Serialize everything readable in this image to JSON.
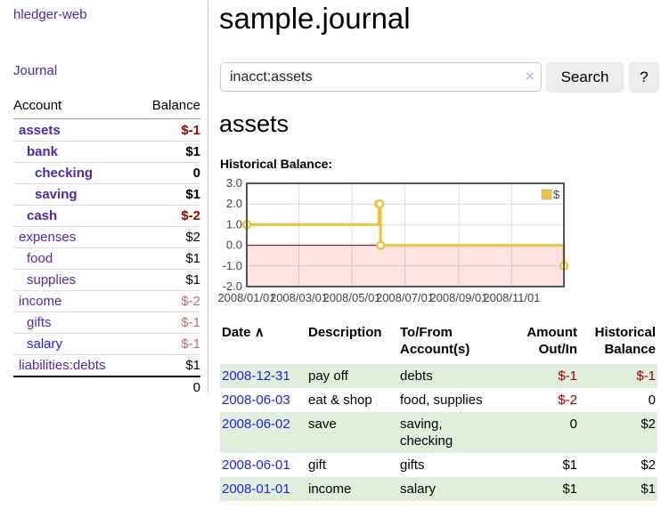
{
  "colors": {
    "link_purple": "#5229a3",
    "link_blue": "#2222dd",
    "negative_strong": "#a40000",
    "negative_muted": "#c06f6f",
    "row_stripe_green": "#e0eedb",
    "series_gold": "#edc240",
    "zero_line_red": "#8b0000",
    "negative_region_red": "#ff0000",
    "plot_border_gray": "#545454"
  },
  "app": {
    "title": "hledger-web"
  },
  "sidebar": {
    "journal_label": "Journal",
    "accounts_table": {
      "headers": {
        "account": "Account",
        "balance": "Balance"
      },
      "rows": [
        {
          "name": "assets",
          "balance": "$-1",
          "depth": 1,
          "bold": true,
          "link": "purple"
        },
        {
          "name": "bank",
          "balance": "$1",
          "depth": 2,
          "bold": true,
          "link": "purple"
        },
        {
          "name": "checking",
          "balance": "0",
          "depth": 3,
          "bold": true,
          "link": "purple"
        },
        {
          "name": "saving",
          "balance": "$1",
          "depth": 3,
          "bold": true,
          "link": "purple"
        },
        {
          "name": "cash",
          "balance": "$-2",
          "depth": 2,
          "bold": true,
          "link": "purple"
        },
        {
          "name": "expenses",
          "balance": "$2",
          "depth": 1,
          "bold": false,
          "link": "purple"
        },
        {
          "name": "food",
          "balance": "$1",
          "depth": 2,
          "bold": false,
          "link": "purple"
        },
        {
          "name": "supplies",
          "balance": "$1",
          "depth": 2,
          "bold": false,
          "link": "purple"
        },
        {
          "name": "income",
          "balance": "$-2",
          "depth": 1,
          "bold": false,
          "link": "purple"
        },
        {
          "name": "gifts",
          "balance": "$-1",
          "depth": 2,
          "bold": false,
          "link": "purple"
        },
        {
          "name": "salary",
          "balance": "$-1",
          "depth": 2,
          "bold": false,
          "link": "blue"
        },
        {
          "name": "liabilities:debts",
          "balance": "$1",
          "depth": 1,
          "bold": false,
          "link": "purple"
        }
      ],
      "total": "0"
    }
  },
  "main": {
    "title": "sample.journal",
    "search": {
      "value": "inacct:assets",
      "clear_icon": "×",
      "button_label": "Search",
      "help_label": "?"
    },
    "account_heading": "assets",
    "chart_label": "Historical Balance:"
  },
  "chart_data": {
    "type": "line",
    "style": "step",
    "title": "Historical Balance:",
    "ylim": [
      -2,
      3
    ],
    "yticks": [
      {
        "value": 3,
        "label": "3.0"
      },
      {
        "value": 2,
        "label": "2.0"
      },
      {
        "value": 1,
        "label": "1.0"
      },
      {
        "value": 0,
        "label": "0.0"
      },
      {
        "value": -1,
        "label": "-1.0"
      },
      {
        "value": -2,
        "label": "-2.0"
      }
    ],
    "xlim_days": [
      0,
      365
    ],
    "xticks": [
      {
        "day": 0,
        "label": "2008/01/01"
      },
      {
        "day": 60,
        "label": "2008/03/01"
      },
      {
        "day": 121,
        "label": "2008/05/01"
      },
      {
        "day": 182,
        "label": "2008/07/01"
      },
      {
        "day": 244,
        "label": "2008/09/01"
      },
      {
        "day": 305,
        "label": "2008/11/01"
      }
    ],
    "legend": {
      "label": "$",
      "position": "top-right"
    },
    "grid": true,
    "series": [
      {
        "name": "$",
        "color": "#edc240",
        "points": [
          {
            "date": "2008/01/01",
            "day": 0,
            "value": 1
          },
          {
            "date": "2008/06/01",
            "day": 152,
            "value": 2
          },
          {
            "date": "2008/06/02",
            "day": 153,
            "value": 2
          },
          {
            "date": "2008/06/03",
            "day": 154,
            "value": 0
          },
          {
            "date": "2008/12/31",
            "day": 365,
            "value": -1
          }
        ]
      }
    ]
  },
  "transactions": {
    "sort_icon": "∧",
    "headers": {
      "date": "Date",
      "description": "Description",
      "accounts": "To/From\nAccount(s)",
      "amount": "Amount\nOut/In",
      "balance": "Historical\nBalance"
    },
    "rows": [
      {
        "date": "2008-12-31",
        "description": "pay off",
        "accounts": "debts",
        "amount": "$-1",
        "balance": "$-1"
      },
      {
        "date": "2008-06-03",
        "description": "eat & shop",
        "accounts": "food, supplies",
        "amount": "$-2",
        "balance": "0"
      },
      {
        "date": "2008-06-02",
        "description": "save",
        "accounts": "saving, checking",
        "amount": "0",
        "balance": "$2"
      },
      {
        "date": "2008-06-01",
        "description": "gift",
        "accounts": "gifts",
        "amount": "$1",
        "balance": "$2"
      },
      {
        "date": "2008-01-01",
        "description": "income",
        "accounts": "salary",
        "amount": "$1",
        "balance": "$1"
      }
    ]
  }
}
